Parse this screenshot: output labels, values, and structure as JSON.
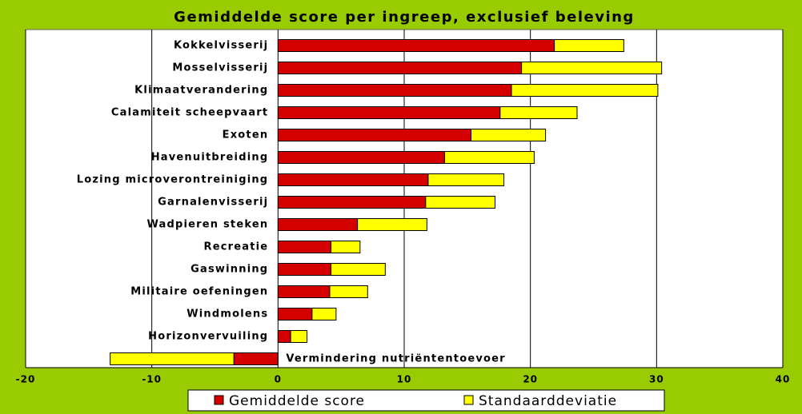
{
  "chart_data": {
    "type": "hbar-stacked",
    "title": "Gemiddelde score per ingreep, exclusief beleving",
    "categories": [
      "Kokkelvisserij",
      "Mosselvisserij",
      "Klimaatverandering",
      "Calamiteit scheepvaart",
      "Exoten",
      "Havenuitbreiding",
      "Lozing microverontreiniging",
      "Garnalenvisserij",
      "Wadpieren steken",
      "Recreatie",
      "Gaswinning",
      "Militaire oefeningen",
      "Windmolens",
      "Horizonvervuiling",
      "Vermindering nutriëntentoevoer"
    ],
    "series": [
      {
        "name": "Gemiddelde score",
        "color": "#d40000",
        "values": [
          21.9,
          19.3,
          18.5,
          17.6,
          15.3,
          13.2,
          11.9,
          11.7,
          6.3,
          4.2,
          4.2,
          4.1,
          2.7,
          1.0,
          -3.5
        ]
      },
      {
        "name": "Standaarddeviatie",
        "color": "#ffff00",
        "values": [
          5.5,
          11.1,
          11.6,
          6.1,
          5.9,
          7.1,
          6.0,
          5.5,
          5.5,
          2.3,
          4.3,
          3.0,
          1.9,
          1.3,
          -9.8
        ]
      }
    ],
    "xlim": [
      -20,
      40
    ],
    "xticks": [
      -20,
      -10,
      0,
      10,
      20,
      30,
      40
    ],
    "grid": true,
    "legend": "bottom"
  }
}
